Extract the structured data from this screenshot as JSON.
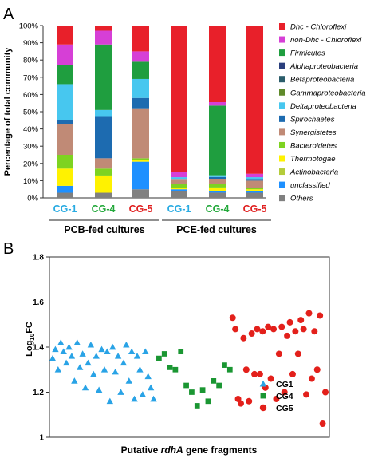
{
  "panel_labels": {
    "a": "A",
    "b": "B"
  },
  "chart_data": [
    {
      "type": "bar",
      "stacked": true,
      "ylabel": "Percentage of total community",
      "yticks": [
        "0%",
        "10%",
        "20%",
        "30%",
        "40%",
        "50%",
        "60%",
        "70%",
        "80%",
        "90%",
        "100%"
      ],
      "ylim": [
        0,
        100
      ],
      "categories": [
        "CG-1",
        "CG-4",
        "CG-5",
        "CG-1",
        "CG-4",
        "CG-5"
      ],
      "category_colors": [
        "#29abe2",
        "#22a83a",
        "#e02020",
        "#29abe2",
        "#22a83a",
        "#e02020"
      ],
      "groups": [
        {
          "label": "PCB-fed cultures",
          "categories": [
            "CG-1",
            "CG-4",
            "CG-5"
          ]
        },
        {
          "label": "PCE-fed cultures",
          "categories": [
            "CG-1",
            "CG-4",
            "CG-5"
          ]
        }
      ],
      "legend_position": "right",
      "series": [
        {
          "name": "Dhc - Chloroflexi",
          "color": "#e8202a",
          "values": [
            11,
            3,
            15,
            85,
            44,
            86
          ]
        },
        {
          "name": "non-Dhc - Chloroflexi",
          "color": "#d63fd6",
          "values": [
            12,
            8,
            6,
            3,
            2,
            2
          ]
        },
        {
          "name": "Firmicutes",
          "color": "#1f9e3f",
          "values": [
            11,
            38,
            10,
            0,
            40,
            0
          ]
        },
        {
          "name": "Alphaproteobacteria",
          "color": "#2a3f7d",
          "values": [
            0,
            0,
            0,
            0,
            0,
            0
          ]
        },
        {
          "name": "Betaproteobacteria",
          "color": "#2b5d6b",
          "values": [
            0,
            0,
            0,
            0,
            0,
            0
          ]
        },
        {
          "name": "Gammaproteobacteria",
          "color": "#5f8a2a",
          "values": [
            0,
            0,
            0,
            0,
            0,
            0
          ]
        },
        {
          "name": "Deltaproteobacteria",
          "color": "#47c7ef",
          "values": [
            21,
            4,
            11,
            1,
            1,
            1
          ]
        },
        {
          "name": "Spirochaetes",
          "color": "#1d6bb0",
          "values": [
            2,
            24,
            6,
            0,
            1,
            1
          ]
        },
        {
          "name": "Synergistetes",
          "color": "#c08a76",
          "values": [
            18,
            6,
            29,
            3,
            3,
            4
          ]
        },
        {
          "name": "Bacteroidetes",
          "color": "#7ed321",
          "values": [
            8,
            4,
            1,
            2,
            2,
            1
          ]
        },
        {
          "name": "Thermotogae",
          "color": "#fff200",
          "values": [
            10,
            10,
            1,
            1,
            2,
            1
          ]
        },
        {
          "name": "Actinobacteria",
          "color": "#b4cc3a",
          "values": [
            0,
            0,
            0,
            0,
            0,
            0
          ]
        },
        {
          "name": "unclassified",
          "color": "#1e90ff",
          "values": [
            4,
            0,
            16,
            1,
            1,
            1
          ]
        },
        {
          "name": "Others",
          "color": "#808080",
          "values": [
            3,
            3,
            5,
            4,
            3,
            3
          ]
        }
      ]
    },
    {
      "type": "scatter",
      "xlabel_prefix": "Putative ",
      "xlabel_italic": "rdhA",
      "xlabel_suffix": " gene fragments",
      "ylabel_main": "Log",
      "ylabel_sub": "10",
      "ylabel_tail": "FC",
      "yticks": [
        "1",
        "1.2",
        "1.4",
        "1.6",
        "1.8"
      ],
      "ylim": [
        1.0,
        1.8
      ],
      "legend_position": "bottom-right",
      "series": [
        {
          "name": "CG1",
          "color": "#29a3e6",
          "marker": "triangle",
          "x": [
            1,
            2,
            3,
            4,
            5,
            6,
            7,
            8,
            9,
            10,
            11,
            12,
            13,
            14,
            15,
            16,
            17,
            18,
            19,
            20,
            21,
            22,
            23,
            24,
            25,
            26,
            27,
            28,
            29,
            30,
            31,
            32,
            33,
            34,
            35,
            36,
            37,
            38
          ],
          "y": [
            1.35,
            1.39,
            1.3,
            1.42,
            1.38,
            1.33,
            1.4,
            1.36,
            1.25,
            1.42,
            1.31,
            1.37,
            1.22,
            1.33,
            1.41,
            1.28,
            1.36,
            1.21,
            1.39,
            1.3,
            1.38,
            1.16,
            1.4,
            1.29,
            1.36,
            1.2,
            1.33,
            1.41,
            1.25,
            1.38,
            1.17,
            1.36,
            1.3,
            1.19,
            1.38,
            1.27,
            1.22,
            1.17
          ]
        },
        {
          "name": "CG4",
          "color": "#1a9632",
          "marker": "square",
          "x": [
            40,
            42,
            44,
            46,
            48,
            50,
            52,
            54,
            56,
            58,
            60,
            62,
            64,
            66
          ],
          "y": [
            1.35,
            1.37,
            1.31,
            1.3,
            1.38,
            1.23,
            1.2,
            1.14,
            1.21,
            1.16,
            1.25,
            1.23,
            1.32,
            1.3
          ]
        },
        {
          "name": "CG5",
          "color": "#e3201b",
          "marker": "circle",
          "x": [
            67,
            68,
            69,
            70,
            71,
            72,
            73,
            74,
            75,
            76,
            77,
            78,
            79,
            80,
            81,
            82,
            83,
            84,
            85,
            86,
            87,
            88,
            89,
            90,
            91,
            92,
            93,
            94,
            95,
            96,
            97,
            98,
            99,
            100,
            101
          ],
          "y": [
            1.53,
            1.48,
            1.17,
            1.15,
            1.44,
            1.3,
            1.16,
            1.46,
            1.28,
            1.48,
            1.28,
            1.47,
            1.22,
            1.49,
            1.26,
            1.48,
            1.17,
            1.37,
            1.49,
            1.2,
            1.45,
            1.51,
            1.28,
            1.47,
            1.37,
            1.52,
            1.48,
            1.19,
            1.55,
            1.26,
            1.47,
            1.3,
            1.54,
            1.06,
            1.2
          ]
        }
      ]
    }
  ]
}
